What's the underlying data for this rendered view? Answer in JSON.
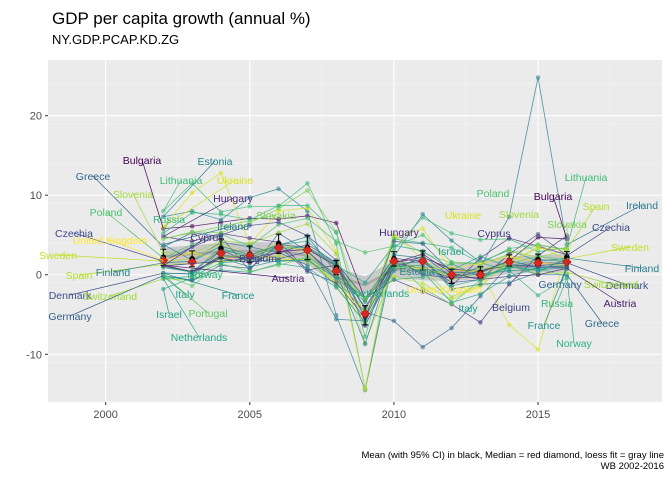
{
  "chart_data": {
    "type": "line",
    "title": "GDP per capita growth (annual %)",
    "subtitle": "NY.GDP.PCAP.KD.ZG",
    "caption": [
      "Mean (with 95% CI) in black, Median = red diamond, loess fit = gray line",
      "WB 2002-2016"
    ],
    "xlim": [
      1998,
      2019.3
    ],
    "ylim": [
      -16,
      27
    ],
    "x_ticks": [
      2000,
      2005,
      2010,
      2015
    ],
    "y_ticks": [
      -10,
      0,
      10,
      20
    ],
    "grid": true,
    "legend": "none",
    "x": [
      2002,
      2003,
      2004,
      2005,
      2006,
      2007,
      2008,
      2009,
      2010,
      2011,
      2012,
      2013,
      2014,
      2015,
      2016
    ],
    "mean": {
      "values": [
        2.2,
        2.0,
        3.3,
        2.6,
        3.9,
        3.4,
        0.9,
        -5.1,
        2.0,
        1.8,
        -0.2,
        0.3,
        1.8,
        1.9,
        2.2
      ],
      "ci": [
        1.0,
        1.0,
        1.2,
        1.0,
        1.2,
        1.5,
        0.9,
        1.2,
        0.9,
        1.2,
        0.9,
        0.7,
        0.7,
        0.7,
        0.7
      ]
    },
    "median": [
      1.8,
      1.6,
      2.7,
      2.4,
      3.4,
      3.1,
      0.5,
      -4.9,
      1.7,
      1.7,
      0.0,
      0.0,
      1.6,
      1.5,
      1.6
    ],
    "loess": [
      2.3,
      2.6,
      2.9,
      3.0,
      3.0,
      2.4,
      -0.2,
      -1.3,
      0.7,
      0.4,
      0.3,
      0.6,
      1.2,
      1.4,
      1.5
    ],
    "series": [
      {
        "name": "Bulgaria",
        "color": "#440154",
        "values": [
          5.8,
          6.1,
          6.6,
          7.1,
          7.0,
          7.4,
          6.5,
          -3.1,
          1.5,
          2.2,
          0.7,
          0.4,
          1.7,
          4.7,
          4.5
        ]
      },
      {
        "name": "Greece",
        "color": "#31688e",
        "values": [
          3.5,
          5.3,
          4.8,
          0.5,
          5.2,
          3.0,
          -0.6,
          -4.7,
          -5.8,
          -9.1,
          -6.7,
          -2.7,
          1.2,
          0.0,
          0.0
        ]
      },
      {
        "name": "Estonia",
        "color": "#26828e",
        "values": [
          7.3,
          8.0,
          6.9,
          9.7,
          10.8,
          8.0,
          -5.1,
          -14.5,
          2.3,
          7.6,
          4.3,
          1.6,
          3.1,
          1.7,
          2.1
        ]
      },
      {
        "name": "Lithuania",
        "color": "#3dbc74",
        "values": [
          8.0,
          11.5,
          7.9,
          8.6,
          8.6,
          11.5,
          3.9,
          -14.3,
          3.2,
          7.2,
          5.2,
          4.4,
          4.5,
          2.9,
          3.4
        ]
      },
      {
        "name": "Ukraine",
        "color": "#d8e219",
        "values": [
          6.0,
          10.3,
          12.8,
          3.8,
          8.0,
          8.4,
          2.9,
          -14.4,
          4.6,
          5.8,
          0.6,
          0.4,
          -6.3,
          -9.4,
          2.9
        ]
      },
      {
        "name": "Slovenia",
        "color": "#9fda3a",
        "values": [
          2.8,
          2.7,
          4.3,
          3.9,
          5.3,
          6.4,
          2.6,
          -8.6,
          0.9,
          0.7,
          -2.8,
          -1.2,
          3.0,
          2.2,
          3.1
        ]
      },
      {
        "name": "Hungary",
        "color": "#482878",
        "values": [
          4.8,
          4.2,
          5.2,
          4.6,
          4.1,
          0.6,
          1.2,
          -6.4,
          1.0,
          2.0,
          -1.4,
          2.1,
          4.6,
          3.6,
          2.5
        ]
      },
      {
        "name": "Poland",
        "color": "#4ac16d",
        "values": [
          2.1,
          3.8,
          5.1,
          3.6,
          6.3,
          7.1,
          4.2,
          2.8,
          3.6,
          5.0,
          1.6,
          1.4,
          3.3,
          3.8,
          3.1
        ]
      },
      {
        "name": "Slovakia",
        "color": "#7ad151",
        "values": [
          4.5,
          5.4,
          5.3,
          6.5,
          8.3,
          10.6,
          5.4,
          -5.6,
          4.8,
          2.7,
          1.5,
          1.3,
          2.6,
          3.7,
          3.2
        ]
      },
      {
        "name": "Ireland",
        "color": "#2a788e",
        "values": [
          3.8,
          1.8,
          4.1,
          3.5,
          2.8,
          1.2,
          -5.6,
          -5.8,
          0.5,
          2.4,
          -0.3,
          1.0,
          7.3,
          24.8,
          3.8
        ]
      },
      {
        "name": "Russia",
        "color": "#35b779",
        "values": [
          5.2,
          7.8,
          7.6,
          6.9,
          8.7,
          8.7,
          5.3,
          -7.8,
          4.5,
          4.0,
          3.4,
          1.5,
          0.5,
          -2.6,
          -0.4
        ]
      },
      {
        "name": "Czechia",
        "color": "#3e4989",
        "values": [
          1.7,
          3.5,
          5.0,
          6.2,
          6.6,
          4.9,
          1.8,
          -5.3,
          2.1,
          1.6,
          -1.0,
          -0.6,
          2.6,
          5.1,
          2.4
        ]
      },
      {
        "name": "United Kingdom",
        "color": "#fde725",
        "values": [
          1.8,
          2.8,
          1.8,
          2.5,
          1.9,
          1.9,
          -1.1,
          -4.9,
          1.2,
          0.8,
          0.8,
          1.4,
          2.3,
          1.5,
          1.1
        ]
      },
      {
        "name": "Cyprus",
        "color": "#46337e",
        "values": [
          1.1,
          0.3,
          2.3,
          2.1,
          2.8,
          3.8,
          1.5,
          -3.0,
          -0.6,
          -2.1,
          -3.7,
          -6.0,
          -1.2,
          2.4,
          4.9
        ]
      },
      {
        "name": "Sweden",
        "color": "#c2df23",
        "values": [
          1.7,
          2.0,
          3.9,
          2.4,
          4.0,
          2.7,
          -1.4,
          -6.0,
          5.0,
          2.0,
          -0.6,
          0.2,
          1.6,
          3.5,
          2.0
        ]
      },
      {
        "name": "Belgium",
        "color": "#414487",
        "values": [
          1.1,
          0.3,
          3.1,
          1.6,
          2.0,
          2.9,
          -0.1,
          -3.0,
          2.1,
          0.0,
          -0.4,
          -0.3,
          1.0,
          1.0,
          0.9
        ]
      },
      {
        "name": "Spain",
        "color": "#b5de2b",
        "values": [
          1.3,
          1.4,
          1.6,
          2.0,
          2.4,
          1.7,
          -0.7,
          -4.6,
          -0.2,
          -1.1,
          -3.1,
          -1.4,
          1.5,
          3.3,
          3.2
        ]
      },
      {
        "name": "Finland",
        "color": "#277f8e",
        "values": [
          1.5,
          1.7,
          3.6,
          2.5,
          3.7,
          4.8,
          0.3,
          -8.7,
          2.5,
          2.1,
          -1.8,
          -1.2,
          -1.0,
          0.3,
          2.1
        ]
      },
      {
        "name": "Norway",
        "color": "#2db27d",
        "values": [
          0.9,
          0.4,
          3.4,
          2.0,
          1.6,
          2.1,
          -1.4,
          -2.9,
          -0.6,
          -0.3,
          1.4,
          -0.3,
          0.9,
          0.8,
          -0.2
        ]
      },
      {
        "name": "Denmark",
        "color": "#3b528b",
        "values": [
          0.2,
          0.1,
          2.5,
          2.1,
          3.6,
          0.4,
          -1.0,
          -5.4,
          1.4,
          0.8,
          -0.4,
          0.5,
          1.2,
          1.1,
          1.5
        ]
      },
      {
        "name": "Switzerland",
        "color": "#a0da39",
        "values": [
          -0.5,
          -0.7,
          2.3,
          2.4,
          3.4,
          3.3,
          1.0,
          -3.3,
          1.9,
          0.7,
          -0.1,
          0.7,
          1.2,
          0.1,
          0.3
        ]
      },
      {
        "name": "Austria",
        "color": "#481a6c",
        "values": [
          1.2,
          0.4,
          2.1,
          1.5,
          2.9,
          3.2,
          1.1,
          -4.1,
          1.5,
          2.6,
          0.2,
          -0.6,
          -0.2,
          0.0,
          0.8
        ]
      },
      {
        "name": "Italy",
        "color": "#1f9e89",
        "values": [
          -0.2,
          -0.7,
          0.6,
          0.3,
          1.4,
          0.9,
          -1.6,
          -6.0,
          1.3,
          0.4,
          -3.5,
          -2.4,
          -0.2,
          0.9,
          1.2
        ]
      },
      {
        "name": "France",
        "color": "#21918c",
        "values": [
          0.2,
          0.1,
          2.1,
          1.0,
          1.8,
          1.8,
          -0.4,
          -3.4,
          1.4,
          1.6,
          -0.2,
          0.1,
          0.5,
          0.7,
          0.8
        ]
      },
      {
        "name": "Germany",
        "color": "#355f8d",
        "values": [
          -0.1,
          -0.7,
          1.2,
          0.8,
          3.8,
          3.4,
          1.2,
          -5.4,
          4.2,
          3.9,
          0.3,
          0.2,
          1.8,
          0.9,
          1.1
        ]
      },
      {
        "name": "Israel",
        "color": "#20a386",
        "values": [
          -1.8,
          -0.4,
          3.1,
          2.4,
          3.8,
          4.2,
          1.2,
          -1.0,
          3.7,
          3.0,
          0.6,
          2.3,
          1.0,
          0.5,
          2.0
        ]
      },
      {
        "name": "Portugal",
        "color": "#5ec962",
        "values": [
          0.0,
          -1.4,
          1.4,
          0.4,
          1.2,
          2.2,
          0.0,
          -2.9,
          1.8,
          -1.7,
          -3.7,
          -0.6,
          1.4,
          2.3,
          1.9
        ]
      },
      {
        "name": "Netherlands",
        "color": "#22a884",
        "values": [
          -0.5,
          -0.2,
          1.5,
          1.8,
          3.3,
          3.5,
          1.4,
          -4.3,
          1.0,
          1.2,
          -1.4,
          -0.6,
          1.1,
          1.9,
          1.7
        ]
      }
    ],
    "left_labels": [
      "Bulgaria",
      "Greece",
      "Estonia",
      "Lithuania",
      "Ukraine",
      "Slovenia",
      "Hungary",
      "Poland",
      "Russia",
      "Ireland",
      "Slovakia",
      "Czechia",
      "United Kingdom",
      "Cyprus",
      "Sweden",
      "Belgium",
      "Spain",
      "Finland",
      "Norway",
      "Austria",
      "Denmark",
      "Switzerland",
      "Italy",
      "France",
      "Germany",
      "Israel",
      "Portugal",
      "Netherlands"
    ],
    "right_labels": [
      "Ireland",
      "Lithuania",
      "Spain",
      "Bulgaria",
      "Slovakia",
      "Czechia",
      "Sweden",
      "Finland",
      "Denmark",
      "Switzerland",
      "Austria",
      "Germany",
      "Russia",
      "Greece",
      "France",
      "Norway"
    ],
    "inline_labels": [
      "Hungary",
      "Slovenia",
      "Poland",
      "Ukraine",
      "Cyprus",
      "Israel",
      "Estonia",
      "Netherlands",
      "United Kingdom",
      "Italy",
      "Belgium"
    ]
  }
}
